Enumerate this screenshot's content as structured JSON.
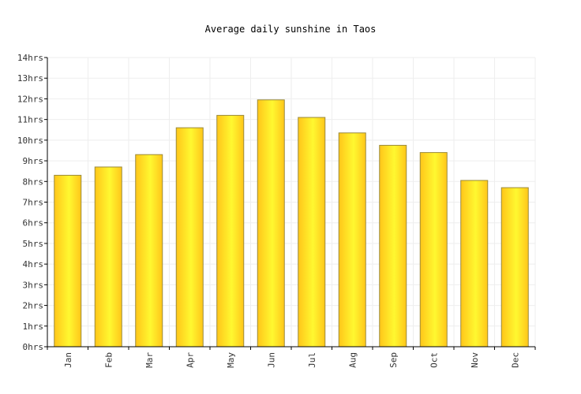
{
  "chart_data": {
    "type": "bar",
    "title": "Average daily sunshine in Taos",
    "xlabel": "",
    "ylabel": "",
    "categories": [
      "Jan",
      "Feb",
      "Mar",
      "Apr",
      "May",
      "Jun",
      "Jul",
      "Aug",
      "Sep",
      "Oct",
      "Nov",
      "Dec"
    ],
    "values": [
      8.3,
      8.7,
      9.3,
      10.6,
      11.2,
      11.95,
      11.1,
      10.35,
      9.75,
      9.4,
      8.05,
      7.7
    ],
    "ylim": [
      0,
      14
    ],
    "y_ticks": [
      "0hrs",
      "1hrs",
      "2hrs",
      "3hrs",
      "4hrs",
      "5hrs",
      "6hrs",
      "7hrs",
      "8hrs",
      "9hrs",
      "10hrs",
      "11hrs",
      "12hrs",
      "13hrs",
      "14hrs"
    ],
    "grid": true,
    "legend": "none",
    "colors": {
      "bar_light": "#fff830",
      "bar_dark": "#ffc61a",
      "bar_border": "#9a8a3a",
      "grid": "#eeeeee",
      "axis": "#000000"
    }
  }
}
